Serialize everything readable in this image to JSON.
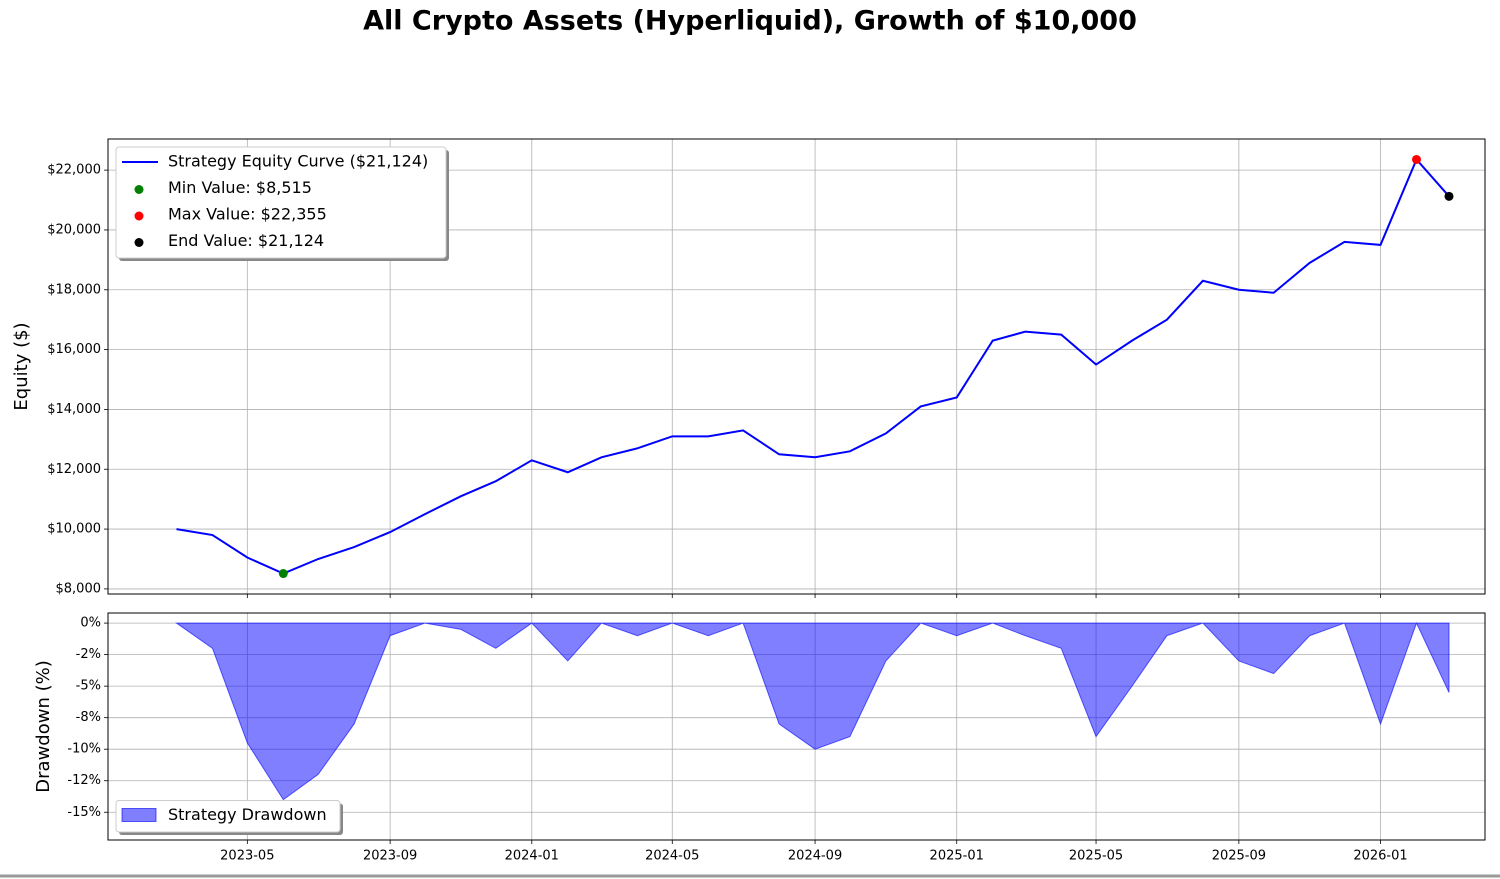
{
  "chart_data": [
    {
      "type": "line",
      "title": "All Crypto Assets (Hyperliquid), Growth of $10,000",
      "ylabel": "Equity ($)",
      "x": [
        "2023-03",
        "2023-04",
        "2023-05",
        "2023-06",
        "2023-07",
        "2023-08",
        "2023-09",
        "2023-10",
        "2023-11",
        "2023-12",
        "2024-01",
        "2024-02",
        "2024-03",
        "2024-04",
        "2024-05",
        "2024-06",
        "2024-07",
        "2024-08",
        "2024-09",
        "2024-10",
        "2024-11",
        "2024-12",
        "2025-01",
        "2025-02",
        "2025-03",
        "2025-04",
        "2025-05",
        "2025-06",
        "2025-07",
        "2025-08",
        "2025-09",
        "2025-10",
        "2025-11",
        "2025-12",
        "2026-01",
        "2026-02",
        "2026-03"
      ],
      "series": [
        {
          "name": "Strategy Equity Curve ($21,124)",
          "color": "#0000ff",
          "values": [
            10000,
            9800,
            9050,
            8515,
            9000,
            9400,
            9900,
            10500,
            11100,
            11600,
            12300,
            11900,
            12400,
            12700,
            13100,
            13100,
            13300,
            12500,
            12400,
            12600,
            13200,
            14100,
            14400,
            16300,
            16600,
            16500,
            15500,
            16300,
            17000,
            18300,
            18000,
            17900,
            18900,
            19600,
            19500,
            22355,
            21124
          ]
        }
      ],
      "points": [
        {
          "name": "Min Value: $8,515",
          "color": "#008000",
          "x": "2023-06",
          "value": 8515
        },
        {
          "name": "Max Value: $22,355",
          "color": "#ff0000",
          "x": "2026-02",
          "value": 22355
        },
        {
          "name": "End Value: $21,124",
          "color": "#000000",
          "x": "2026-03",
          "value": 21124
        }
      ],
      "xlim": [
        "2023-01",
        "2026-04"
      ],
      "xticks": [
        "2023-05",
        "2023-09",
        "2024-01",
        "2024-05",
        "2024-09",
        "2025-01",
        "2025-05",
        "2025-09",
        "2026-01"
      ],
      "ylim": [
        7830,
        23040
      ],
      "yticks": [
        {
          "value": 8000,
          "label": "$8,000"
        },
        {
          "value": 10000,
          "label": "$10,000"
        },
        {
          "value": 12000,
          "label": "$12,000"
        },
        {
          "value": 14000,
          "label": "$14,000"
        },
        {
          "value": 16000,
          "label": "$16,000"
        },
        {
          "value": 18000,
          "label": "$18,000"
        },
        {
          "value": 20000,
          "label": "$20,000"
        },
        {
          "value": 22000,
          "label": "$22,000"
        }
      ],
      "grid": true,
      "legend": "upper left"
    },
    {
      "type": "area",
      "ylabel": "Drawdown (%)",
      "x": [
        "2023-03",
        "2023-04",
        "2023-05",
        "2023-06",
        "2023-07",
        "2023-08",
        "2023-09",
        "2023-10",
        "2023-11",
        "2023-12",
        "2024-01",
        "2024-02",
        "2024-03",
        "2024-04",
        "2024-05",
        "2024-06",
        "2024-07",
        "2024-08",
        "2024-09",
        "2024-10",
        "2024-11",
        "2024-12",
        "2025-01",
        "2025-02",
        "2025-03",
        "2025-04",
        "2025-05",
        "2025-06",
        "2025-07",
        "2025-08",
        "2025-09",
        "2025-10",
        "2025-11",
        "2025-12",
        "2026-01",
        "2026-02",
        "2026-03"
      ],
      "series": [
        {
          "name": "Strategy Drawdown",
          "color": "#0000ff",
          "values": [
            0,
            -2,
            -9.5,
            -14,
            -12,
            -8,
            -1,
            0,
            -0.5,
            -2,
            0,
            -3,
            0,
            -1,
            0,
            -1,
            0,
            -8,
            -10,
            -9,
            -3,
            0,
            -1,
            0,
            -1,
            -2,
            -9,
            -5,
            -1,
            0,
            -3,
            -4,
            -1,
            0,
            -8,
            0,
            -5.5
          ]
        }
      ],
      "xlim": [
        "2023-01",
        "2026-04"
      ],
      "xticks": [
        "2023-05",
        "2023-09",
        "2024-01",
        "2024-05",
        "2024-09",
        "2025-01",
        "2025-05",
        "2025-09",
        "2026-01"
      ],
      "ylim": [
        -17.2,
        0.8
      ],
      "yticks": [
        {
          "value": 0,
          "label": "0%"
        },
        {
          "value": -2.5,
          "label": "-2%"
        },
        {
          "value": -5,
          "label": "-5%"
        },
        {
          "value": -7.5,
          "label": "-8%"
        },
        {
          "value": -10,
          "label": "-10%"
        },
        {
          "value": -12.5,
          "label": "-12%"
        },
        {
          "value": -15,
          "label": "-15%"
        }
      ],
      "grid": true,
      "legend": "lower left"
    }
  ]
}
